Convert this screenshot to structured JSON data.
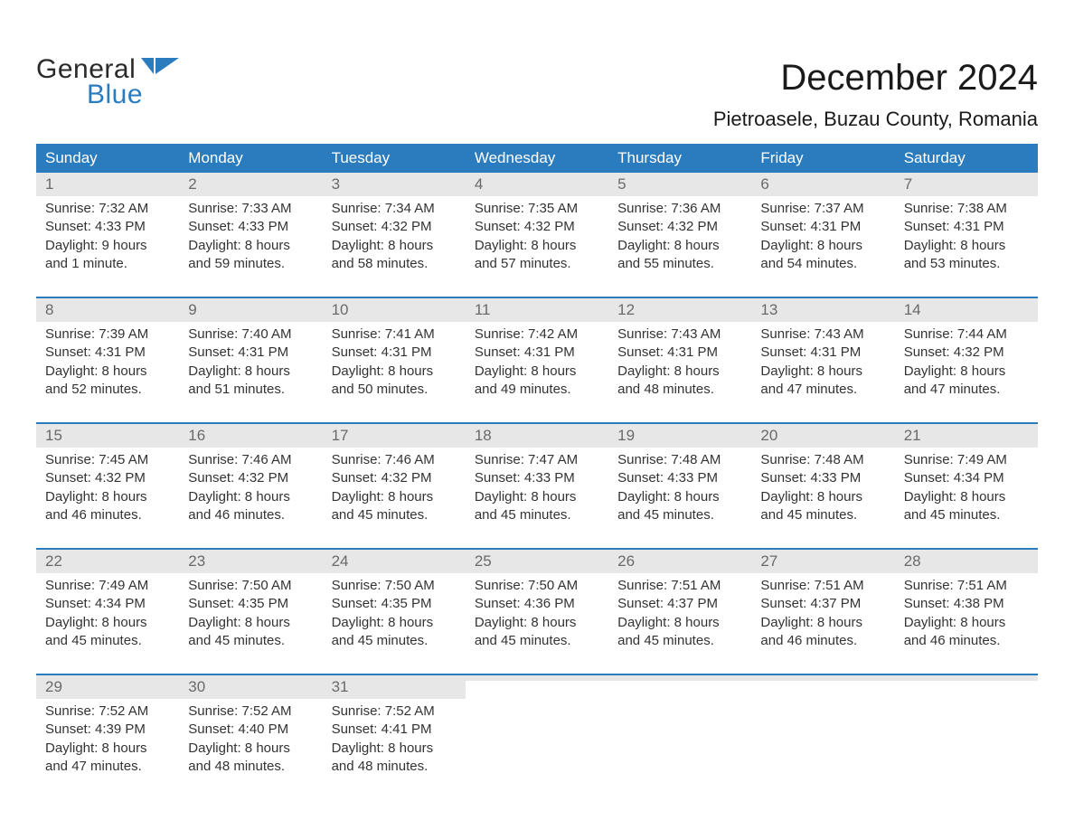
{
  "logo": {
    "word1": "General",
    "word2": "Blue",
    "text_color": "#2a2a2a",
    "accent_color": "#2b7bbf"
  },
  "title": "December 2024",
  "location": "Pietroasele, Buzau County, Romania",
  "colors": {
    "header_bg": "#2b7bbf",
    "header_text": "#ffffff",
    "daynum_bg": "#e7e7e7",
    "daynum_text": "#6a6a6a",
    "body_text": "#333333",
    "week_divider": "#2b7bbf",
    "page_bg": "#ffffff"
  },
  "weekdays": [
    "Sunday",
    "Monday",
    "Tuesday",
    "Wednesday",
    "Thursday",
    "Friday",
    "Saturday"
  ],
  "weeks": [
    [
      {
        "n": "1",
        "sunrise": "Sunrise: 7:32 AM",
        "sunset": "Sunset: 4:33 PM",
        "d1": "Daylight: 9 hours",
        "d2": "and 1 minute."
      },
      {
        "n": "2",
        "sunrise": "Sunrise: 7:33 AM",
        "sunset": "Sunset: 4:33 PM",
        "d1": "Daylight: 8 hours",
        "d2": "and 59 minutes."
      },
      {
        "n": "3",
        "sunrise": "Sunrise: 7:34 AM",
        "sunset": "Sunset: 4:32 PM",
        "d1": "Daylight: 8 hours",
        "d2": "and 58 minutes."
      },
      {
        "n": "4",
        "sunrise": "Sunrise: 7:35 AM",
        "sunset": "Sunset: 4:32 PM",
        "d1": "Daylight: 8 hours",
        "d2": "and 57 minutes."
      },
      {
        "n": "5",
        "sunrise": "Sunrise: 7:36 AM",
        "sunset": "Sunset: 4:32 PM",
        "d1": "Daylight: 8 hours",
        "d2": "and 55 minutes."
      },
      {
        "n": "6",
        "sunrise": "Sunrise: 7:37 AM",
        "sunset": "Sunset: 4:31 PM",
        "d1": "Daylight: 8 hours",
        "d2": "and 54 minutes."
      },
      {
        "n": "7",
        "sunrise": "Sunrise: 7:38 AM",
        "sunset": "Sunset: 4:31 PM",
        "d1": "Daylight: 8 hours",
        "d2": "and 53 minutes."
      }
    ],
    [
      {
        "n": "8",
        "sunrise": "Sunrise: 7:39 AM",
        "sunset": "Sunset: 4:31 PM",
        "d1": "Daylight: 8 hours",
        "d2": "and 52 minutes."
      },
      {
        "n": "9",
        "sunrise": "Sunrise: 7:40 AM",
        "sunset": "Sunset: 4:31 PM",
        "d1": "Daylight: 8 hours",
        "d2": "and 51 minutes."
      },
      {
        "n": "10",
        "sunrise": "Sunrise: 7:41 AM",
        "sunset": "Sunset: 4:31 PM",
        "d1": "Daylight: 8 hours",
        "d2": "and 50 minutes."
      },
      {
        "n": "11",
        "sunrise": "Sunrise: 7:42 AM",
        "sunset": "Sunset: 4:31 PM",
        "d1": "Daylight: 8 hours",
        "d2": "and 49 minutes."
      },
      {
        "n": "12",
        "sunrise": "Sunrise: 7:43 AM",
        "sunset": "Sunset: 4:31 PM",
        "d1": "Daylight: 8 hours",
        "d2": "and 48 minutes."
      },
      {
        "n": "13",
        "sunrise": "Sunrise: 7:43 AM",
        "sunset": "Sunset: 4:31 PM",
        "d1": "Daylight: 8 hours",
        "d2": "and 47 minutes."
      },
      {
        "n": "14",
        "sunrise": "Sunrise: 7:44 AM",
        "sunset": "Sunset: 4:32 PM",
        "d1": "Daylight: 8 hours",
        "d2": "and 47 minutes."
      }
    ],
    [
      {
        "n": "15",
        "sunrise": "Sunrise: 7:45 AM",
        "sunset": "Sunset: 4:32 PM",
        "d1": "Daylight: 8 hours",
        "d2": "and 46 minutes."
      },
      {
        "n": "16",
        "sunrise": "Sunrise: 7:46 AM",
        "sunset": "Sunset: 4:32 PM",
        "d1": "Daylight: 8 hours",
        "d2": "and 46 minutes."
      },
      {
        "n": "17",
        "sunrise": "Sunrise: 7:46 AM",
        "sunset": "Sunset: 4:32 PM",
        "d1": "Daylight: 8 hours",
        "d2": "and 45 minutes."
      },
      {
        "n": "18",
        "sunrise": "Sunrise: 7:47 AM",
        "sunset": "Sunset: 4:33 PM",
        "d1": "Daylight: 8 hours",
        "d2": "and 45 minutes."
      },
      {
        "n": "19",
        "sunrise": "Sunrise: 7:48 AM",
        "sunset": "Sunset: 4:33 PM",
        "d1": "Daylight: 8 hours",
        "d2": "and 45 minutes."
      },
      {
        "n": "20",
        "sunrise": "Sunrise: 7:48 AM",
        "sunset": "Sunset: 4:33 PM",
        "d1": "Daylight: 8 hours",
        "d2": "and 45 minutes."
      },
      {
        "n": "21",
        "sunrise": "Sunrise: 7:49 AM",
        "sunset": "Sunset: 4:34 PM",
        "d1": "Daylight: 8 hours",
        "d2": "and 45 minutes."
      }
    ],
    [
      {
        "n": "22",
        "sunrise": "Sunrise: 7:49 AM",
        "sunset": "Sunset: 4:34 PM",
        "d1": "Daylight: 8 hours",
        "d2": "and 45 minutes."
      },
      {
        "n": "23",
        "sunrise": "Sunrise: 7:50 AM",
        "sunset": "Sunset: 4:35 PM",
        "d1": "Daylight: 8 hours",
        "d2": "and 45 minutes."
      },
      {
        "n": "24",
        "sunrise": "Sunrise: 7:50 AM",
        "sunset": "Sunset: 4:35 PM",
        "d1": "Daylight: 8 hours",
        "d2": "and 45 minutes."
      },
      {
        "n": "25",
        "sunrise": "Sunrise: 7:50 AM",
        "sunset": "Sunset: 4:36 PM",
        "d1": "Daylight: 8 hours",
        "d2": "and 45 minutes."
      },
      {
        "n": "26",
        "sunrise": "Sunrise: 7:51 AM",
        "sunset": "Sunset: 4:37 PM",
        "d1": "Daylight: 8 hours",
        "d2": "and 45 minutes."
      },
      {
        "n": "27",
        "sunrise": "Sunrise: 7:51 AM",
        "sunset": "Sunset: 4:37 PM",
        "d1": "Daylight: 8 hours",
        "d2": "and 46 minutes."
      },
      {
        "n": "28",
        "sunrise": "Sunrise: 7:51 AM",
        "sunset": "Sunset: 4:38 PM",
        "d1": "Daylight: 8 hours",
        "d2": "and 46 minutes."
      }
    ],
    [
      {
        "n": "29",
        "sunrise": "Sunrise: 7:52 AM",
        "sunset": "Sunset: 4:39 PM",
        "d1": "Daylight: 8 hours",
        "d2": "and 47 minutes."
      },
      {
        "n": "30",
        "sunrise": "Sunrise: 7:52 AM",
        "sunset": "Sunset: 4:40 PM",
        "d1": "Daylight: 8 hours",
        "d2": "and 48 minutes."
      },
      {
        "n": "31",
        "sunrise": "Sunrise: 7:52 AM",
        "sunset": "Sunset: 4:41 PM",
        "d1": "Daylight: 8 hours",
        "d2": "and 48 minutes."
      },
      {
        "empty": true
      },
      {
        "empty": true
      },
      {
        "empty": true
      },
      {
        "empty": true
      }
    ]
  ]
}
